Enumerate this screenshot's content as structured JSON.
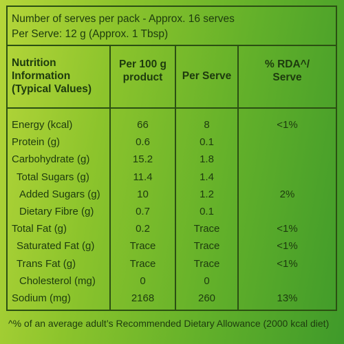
{
  "header": {
    "serves": "Number of serves per pack - Approx. 16 serves",
    "serving": "Per Serve: 12 g (Approx. 1 Tbsp)"
  },
  "table": {
    "columns": [
      "Nutrition\nInformation\n(Typical Values)",
      "Per 100 g\nproduct",
      "Per Serve",
      "% RDA^/\nServe"
    ],
    "rows": [
      {
        "name": "Energy (kcal)",
        "per100": "66",
        "perServe": "8",
        "rda": "<1%",
        "level": 0
      },
      {
        "name": "Protein (g)",
        "per100": "0.6",
        "perServe": "0.1",
        "level": 0
      },
      {
        "name": "Carbohydrate (g)",
        "per100": "15.2",
        "perServe": "1.8",
        "level": 0
      },
      {
        "name": "Total Sugars (g)",
        "per100": "11.4",
        "perServe": "1.4",
        "level": 1
      },
      {
        "name": "Added Sugars (g)",
        "per100": "10",
        "perServe": "1.2",
        "rda": "2%",
        "level": 2
      },
      {
        "name": "Dietary Fibre (g)",
        "per100": "0.7",
        "perServe": "0.1",
        "level": 2
      },
      {
        "name": "Total Fat (g)",
        "per100": "0.2",
        "perServe": "Trace",
        "rda": "<1%",
        "level": 0
      },
      {
        "name": "Saturated Fat (g)",
        "per100": "Trace",
        "perServe": "Trace",
        "rda": "<1%",
        "level": 1
      },
      {
        "name": "Trans Fat (g)",
        "per100": "Trace",
        "perServe": "Trace",
        "rda": "<1%",
        "level": 1
      },
      {
        "name": "Cholesterol (mg)",
        "per100": "0",
        "perServe": "0",
        "level": 2
      },
      {
        "name": "Sodium (mg)",
        "per100": "2168",
        "perServe": "260",
        "rda": "13%",
        "level": 0
      }
    ]
  },
  "footnote": "^% of an average adult’s Recommended Dietary Allowance (2000 kcal diet)"
}
